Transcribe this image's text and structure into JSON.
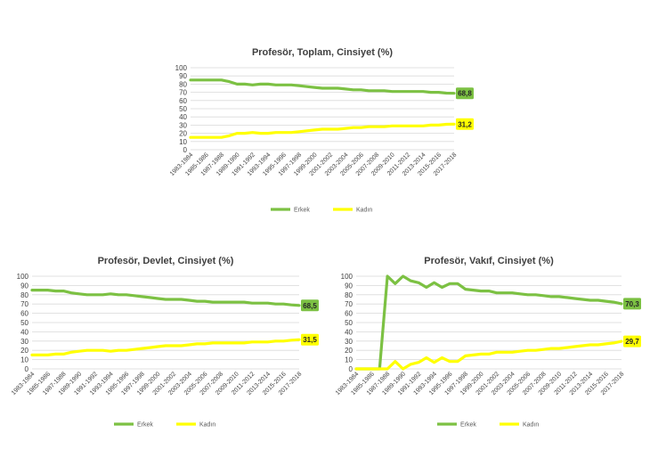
{
  "colors": {
    "erkek": "#7cc143",
    "kadin": "#ffff00",
    "grid": "#d9d9d9",
    "text": "#404040"
  },
  "chart_data": [
    {
      "type": "line",
      "title": "Profesör, Toplam, Cinsiyet (%)",
      "ylim": [
        0,
        100
      ],
      "yticks": [
        "0",
        "10",
        "20",
        "30",
        "40",
        "50",
        "60",
        "70",
        "80",
        "90",
        "100"
      ],
      "categories": [
        "1983-1984",
        "1985-1986",
        "1987-1988",
        "1989-1990",
        "1991-1992",
        "1993-1994",
        "1995-1996",
        "1997-1998",
        "1999-2000",
        "2001-2002",
        "2003-2004",
        "2005-2006",
        "2007-2008",
        "2009-2010",
        "2011-2012",
        "2013-2014",
        "2015-2016",
        "2017-2018"
      ],
      "x": [
        "1983-1984",
        "1984-1985",
        "1985-1986",
        "1986-1987",
        "1987-1988",
        "1988-1989",
        "1989-1990",
        "1990-1991",
        "1991-1992",
        "1992-1993",
        "1993-1994",
        "1994-1995",
        "1995-1996",
        "1996-1997",
        "1997-1998",
        "1998-1999",
        "1999-2000",
        "2000-2001",
        "2001-2002",
        "2002-2003",
        "2003-2004",
        "2004-2005",
        "2005-2006",
        "2006-2007",
        "2007-2008",
        "2008-2009",
        "2009-2010",
        "2010-2011",
        "2011-2012",
        "2012-2013",
        "2013-2014",
        "2014-2015",
        "2015-2016",
        "2016-2017",
        "2017-2018"
      ],
      "series": [
        {
          "name": "Erkek",
          "end_label": "68,8",
          "values": [
            85,
            85,
            85,
            85,
            85,
            83,
            80,
            80,
            79,
            80,
            80,
            79,
            79,
            79,
            78,
            77,
            76,
            75,
            75,
            75,
            74,
            73,
            73,
            72,
            72,
            72,
            71,
            71,
            71,
            71,
            71,
            70,
            70,
            69,
            68.8
          ]
        },
        {
          "name": "Kadın",
          "end_label": "31,2",
          "values": [
            15,
            15,
            15,
            15,
            15,
            17,
            20,
            20,
            21,
            20,
            20,
            21,
            21,
            21,
            22,
            23,
            24,
            25,
            25,
            25,
            26,
            27,
            27,
            28,
            28,
            28,
            29,
            29,
            29,
            29,
            29,
            30,
            30,
            31,
            31.2
          ]
        }
      ],
      "legend": "bottom"
    },
    {
      "type": "line",
      "title": "Profesör, Devlet, Cinsiyet (%)",
      "ylim": [
        0,
        100
      ],
      "yticks": [
        "0",
        "10",
        "20",
        "30",
        "40",
        "50",
        "60",
        "70",
        "80",
        "90",
        "100"
      ],
      "categories": [
        "1983-1984",
        "1985-1986",
        "1987-1988",
        "1989-1990",
        "1991-1992",
        "1993-1994",
        "1995-1996",
        "1997-1998",
        "1999-2000",
        "2001-2002",
        "2003-2004",
        "2005-2006",
        "2007-2008",
        "2009-2010",
        "2011-2012",
        "2013-2014",
        "2015-2016",
        "2017-2018"
      ],
      "x": [
        "1983-1984",
        "1984-1985",
        "1985-1986",
        "1986-1987",
        "1987-1988",
        "1988-1989",
        "1989-1990",
        "1990-1991",
        "1991-1992",
        "1992-1993",
        "1993-1994",
        "1994-1995",
        "1995-1996",
        "1996-1997",
        "1997-1998",
        "1998-1999",
        "1999-2000",
        "2000-2001",
        "2001-2002",
        "2002-2003",
        "2003-2004",
        "2004-2005",
        "2005-2006",
        "2006-2007",
        "2007-2008",
        "2008-2009",
        "2009-2010",
        "2010-2011",
        "2011-2012",
        "2012-2013",
        "2013-2014",
        "2014-2015",
        "2015-2016",
        "2016-2017",
        "2017-2018"
      ],
      "series": [
        {
          "name": "Erkek",
          "end_label": "68,5",
          "values": [
            85,
            85,
            85,
            84,
            84,
            82,
            81,
            80,
            80,
            80,
            81,
            80,
            80,
            79,
            78,
            77,
            76,
            75,
            75,
            75,
            74,
            73,
            73,
            72,
            72,
            72,
            72,
            72,
            71,
            71,
            71,
            70,
            70,
            69,
            68.5
          ]
        },
        {
          "name": "Kadın",
          "end_label": "31,5",
          "values": [
            15,
            15,
            15,
            16,
            16,
            18,
            19,
            20,
            20,
            20,
            19,
            20,
            20,
            21,
            22,
            23,
            24,
            25,
            25,
            25,
            26,
            27,
            27,
            28,
            28,
            28,
            28,
            28,
            29,
            29,
            29,
            30,
            30,
            31,
            31.5
          ]
        }
      ],
      "legend": "bottom"
    },
    {
      "type": "line",
      "title": "Profesör, Vakıf, Cinsiyet (%)",
      "ylim": [
        0,
        100
      ],
      "yticks": [
        "0",
        "10",
        "20",
        "30",
        "40",
        "50",
        "60",
        "70",
        "80",
        "90",
        "100"
      ],
      "categories": [
        "1983-1984",
        "1985-1986",
        "1987-1988",
        "1989-1990",
        "1991-1992",
        "1993-1994",
        "1995-1996",
        "1997-1998",
        "1999-2000",
        "2001-2002",
        "2003-2004",
        "2005-2006",
        "2007-2008",
        "2009-2010",
        "2011-2012",
        "2013-2014",
        "2015-2016",
        "2017-2018"
      ],
      "x": [
        "1983-1984",
        "1984-1985",
        "1985-1986",
        "1986-1987",
        "1987-1988",
        "1988-1989",
        "1989-1990",
        "1990-1991",
        "1991-1992",
        "1992-1993",
        "1993-1994",
        "1994-1995",
        "1995-1996",
        "1996-1997",
        "1997-1998",
        "1998-1999",
        "1999-2000",
        "2000-2001",
        "2001-2002",
        "2002-2003",
        "2003-2004",
        "2004-2005",
        "2005-2006",
        "2006-2007",
        "2007-2008",
        "2008-2009",
        "2009-2010",
        "2010-2011",
        "2011-2012",
        "2012-2013",
        "2013-2014",
        "2014-2015",
        "2015-2016",
        "2016-2017",
        "2017-2018"
      ],
      "series": [
        {
          "name": "Erkek",
          "end_label": "70,3",
          "values": [
            0,
            0,
            0,
            0,
            100,
            92,
            100,
            95,
            93,
            88,
            93,
            88,
            92,
            92,
            86,
            85,
            84,
            84,
            82,
            82,
            82,
            81,
            80,
            80,
            79,
            78,
            78,
            77,
            76,
            75,
            74,
            74,
            73,
            72,
            70.3
          ]
        },
        {
          "name": "Kadın",
          "end_label": "29,7",
          "values": [
            0,
            0,
            0,
            0,
            0,
            8,
            0,
            5,
            7,
            12,
            7,
            12,
            8,
            8,
            14,
            15,
            16,
            16,
            18,
            18,
            18,
            19,
            20,
            20,
            21,
            22,
            22,
            23,
            24,
            25,
            26,
            26,
            27,
            28,
            29.7
          ]
        }
      ],
      "legend": "bottom"
    }
  ]
}
